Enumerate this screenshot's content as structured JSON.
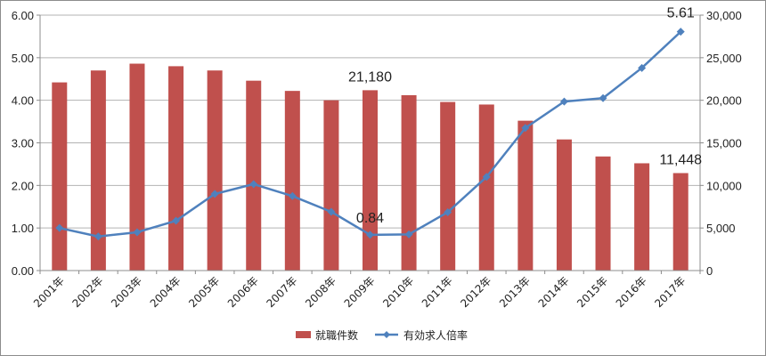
{
  "chart_data": {
    "type": "bar+line",
    "categories": [
      "2001年",
      "2002年",
      "2003年",
      "2004年",
      "2005年",
      "2006年",
      "2007年",
      "2008年",
      "2009年",
      "2010年",
      "2011年",
      "2012年",
      "2013年",
      "2014年",
      "2015年",
      "2016年",
      "2017年"
    ],
    "series": [
      {
        "name": "就職件数",
        "type": "bar",
        "axis": "right",
        "color": "#c0504d",
        "values": [
          22100,
          23500,
          24300,
          24000,
          23500,
          22300,
          21100,
          20000,
          21180,
          20600,
          19800,
          19500,
          17600,
          15400,
          13400,
          12600,
          11448
        ]
      },
      {
        "name": "有効求人倍率",
        "type": "line",
        "axis": "left",
        "color": "#4f81bd",
        "values": [
          1.0,
          0.8,
          0.9,
          1.17,
          1.8,
          2.03,
          1.75,
          1.38,
          0.84,
          0.85,
          1.37,
          2.2,
          3.35,
          3.97,
          4.05,
          4.76,
          5.61
        ]
      }
    ],
    "yaxis_left": {
      "min": 0,
      "max": 6,
      "ticks": [
        "0.00",
        "1.00",
        "2.00",
        "3.00",
        "4.00",
        "5.00",
        "6.00"
      ]
    },
    "yaxis_right": {
      "min": 0,
      "max": 30000,
      "ticks": [
        "0",
        "5,000",
        "10,000",
        "15,000",
        "20,000",
        "25,000",
        "30,000"
      ]
    },
    "data_labels": [
      {
        "series": 0,
        "index": 8,
        "text": "21,180"
      },
      {
        "series": 0,
        "index": 16,
        "text": "11,448"
      },
      {
        "series": 1,
        "index": 8,
        "text": "0.84"
      },
      {
        "series": 1,
        "index": 16,
        "text": "5.61"
      }
    ],
    "grid": true,
    "legend": "bottom"
  }
}
